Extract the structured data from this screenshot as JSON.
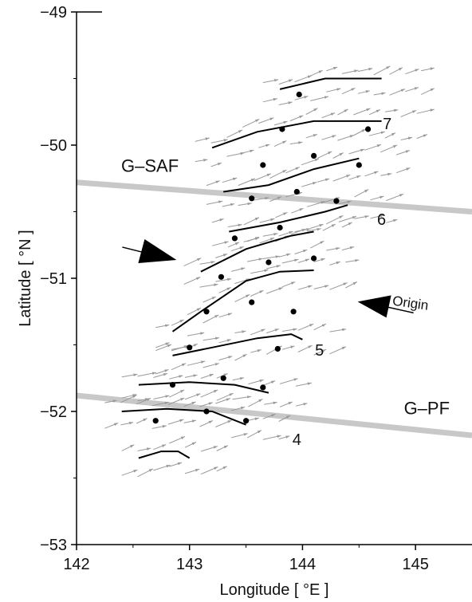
{
  "chart_data": {
    "type": "scatter",
    "title": "",
    "xlabel": "Longitude [ °E ]",
    "ylabel": "Latitude [ °N ]",
    "xlim": [
      142,
      145.5
    ],
    "ylim": [
      -53,
      -49
    ],
    "xticks": [
      142,
      143,
      144,
      145
    ],
    "yticks": [
      -53,
      -52,
      -51,
      -50,
      -49
    ],
    "x_tick_labels": [
      "142",
      "143",
      "144",
      "145"
    ],
    "y_tick_labels": [
      "−53",
      "−52",
      "−51",
      "−50",
      "−49"
    ],
    "grid": false,
    "fronts": [
      {
        "label": "G–SAF",
        "color": "#c8c8c8",
        "points": [
          [
            142,
            -50.28
          ],
          [
            145.5,
            -50.5
          ]
        ]
      },
      {
        "label": "G–PF",
        "color": "#c8c8c8",
        "points": [
          [
            142,
            -51.88
          ],
          [
            145.5,
            -52.18
          ]
        ]
      }
    ],
    "track_lines": [
      [
        [
          143.8,
          -49.58
        ],
        [
          144.2,
          -49.5
        ],
        [
          144.7,
          -49.5
        ]
      ],
      [
        [
          143.2,
          -50.02
        ],
        [
          143.6,
          -49.9
        ],
        [
          144.1,
          -49.82
        ],
        [
          144.7,
          -49.82
        ]
      ],
      [
        [
          143.3,
          -50.35
        ],
        [
          143.7,
          -50.3
        ],
        [
          144.1,
          -50.18
        ],
        [
          144.5,
          -50.1
        ]
      ],
      [
        [
          143.35,
          -50.65
        ],
        [
          143.8,
          -50.58
        ],
        [
          144.2,
          -50.5
        ],
        [
          144.4,
          -50.45
        ]
      ],
      [
        [
          143.1,
          -50.95
        ],
        [
          143.5,
          -50.78
        ],
        [
          143.9,
          -50.68
        ],
        [
          144.1,
          -50.65
        ]
      ],
      [
        [
          142.85,
          -51.4
        ],
        [
          143.1,
          -51.25
        ],
        [
          143.5,
          -51.02
        ],
        [
          143.8,
          -50.95
        ],
        [
          144.1,
          -50.94
        ]
      ],
      [
        [
          142.85,
          -51.58
        ],
        [
          143.2,
          -51.52
        ],
        [
          143.6,
          -51.45
        ],
        [
          143.9,
          -51.42
        ],
        [
          144.0,
          -51.46
        ]
      ],
      [
        [
          142.55,
          -51.8
        ],
        [
          143.0,
          -51.78
        ],
        [
          143.4,
          -51.8
        ],
        [
          143.7,
          -51.86
        ]
      ],
      [
        [
          142.4,
          -52.0
        ],
        [
          142.8,
          -51.98
        ],
        [
          143.2,
          -52.0
        ],
        [
          143.5,
          -52.1
        ]
      ],
      [
        [
          142.55,
          -52.35
        ],
        [
          142.75,
          -52.3
        ],
        [
          142.9,
          -52.3
        ],
        [
          143.0,
          -52.35
        ]
      ]
    ],
    "stations_x": [
      143.97,
      143.82,
      144.58,
      143.65,
      144.1,
      144.5,
      143.55,
      143.95,
      144.3,
      143.4,
      143.8,
      144.1,
      143.28,
      143.7,
      143.15,
      143.55,
      143.92,
      143.0,
      143.78,
      142.85,
      143.3,
      143.65,
      143.15,
      142.7,
      143.5
    ],
    "stations_y": [
      -49.62,
      -49.88,
      -49.88,
      -50.15,
      -50.08,
      -50.15,
      -50.4,
      -50.35,
      -50.42,
      -50.7,
      -50.62,
      -50.85,
      -50.99,
      -50.88,
      -51.25,
      -51.18,
      -51.25,
      -51.52,
      -51.53,
      -51.8,
      -51.75,
      -51.82,
      -52.0,
      -52.07,
      -52.07
    ],
    "annotations": [
      {
        "text": "7",
        "x": 144.75,
        "y": -49.88
      },
      {
        "text": "6",
        "x": 144.7,
        "y": -50.6
      },
      {
        "text": "5",
        "x": 144.15,
        "y": -51.58
      },
      {
        "text": "4",
        "x": 143.95,
        "y": -52.25
      },
      {
        "text": "Origin",
        "x": 144.95,
        "y": -51.22
      },
      {
        "text": "G–SAF",
        "x": 142.65,
        "y": -50.2
      },
      {
        "text": "G–PF",
        "x": 145.1,
        "y": -52.02
      }
    ],
    "arrows": [
      {
        "label": "pointer-left",
        "x": 142.8,
        "y": -50.85
      },
      {
        "label": "pointer-origin",
        "x": 144.7,
        "y": -51.2
      }
    ]
  }
}
